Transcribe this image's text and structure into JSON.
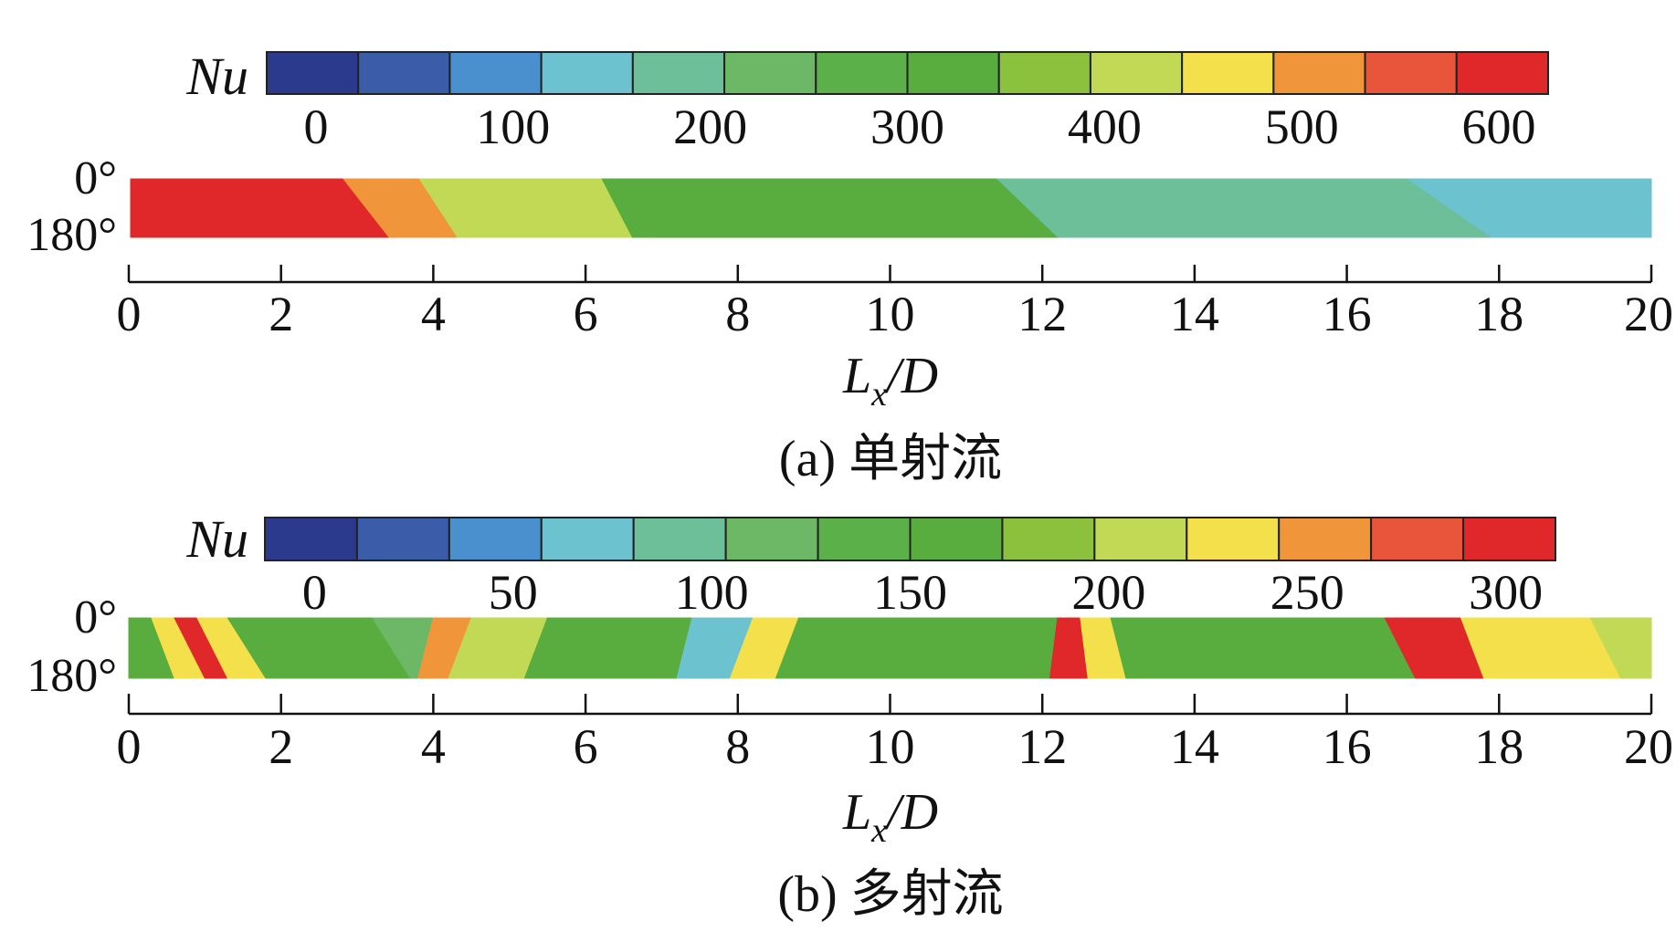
{
  "chart_data": [
    {
      "type": "heatmap",
      "panel_label": "(a) 单射流",
      "colorbar": {
        "title": "Nu",
        "tick_labels": [
          "0",
          "100",
          "200",
          "300",
          "400",
          "500",
          "600"
        ],
        "range": [
          -25,
          625
        ],
        "step": 50,
        "colors": [
          "#2b3a8c",
          "#3b5ca8",
          "#4a90cf",
          "#6cc3cf",
          "#6dbf9a",
          "#6cb866",
          "#5bb04a",
          "#59ad3e",
          "#8cc13e",
          "#c2d955",
          "#f3e04a",
          "#f0953a",
          "#e8553a",
          "#e0282a"
        ]
      },
      "y_labels": [
        "0°",
        "180°"
      ],
      "x_axis": {
        "label_main": "L",
        "label_sub": "x",
        "label_tail": "/D",
        "range": [
          0,
          20
        ],
        "ticks": [
          "0",
          "2",
          "4",
          "6",
          "8",
          "10",
          "12",
          "14",
          "16",
          "18",
          "20"
        ]
      },
      "field": {
        "description_x_unit": "Lx/D",
        "zones": [
          {
            "x_top": 0.0,
            "x_bottom": 0.0,
            "value": 600
          },
          {
            "x_top": 2.8,
            "x_bottom": 3.4,
            "value": 500
          },
          {
            "x_top": 3.8,
            "x_bottom": 4.3,
            "value": 400
          },
          {
            "x_top": 6.2,
            "x_bottom": 6.6,
            "value": 320
          },
          {
            "x_top": 11.4,
            "x_bottom": 12.2,
            "value": 200
          },
          {
            "x_top": 16.8,
            "x_bottom": 17.9,
            "value": 150
          }
        ],
        "end": 20
      }
    },
    {
      "type": "heatmap",
      "panel_label": "(b) 多射流",
      "colorbar": {
        "title": "Nu",
        "tick_labels": [
          "0",
          "50",
          "100",
          "150",
          "200",
          "250",
          "300"
        ],
        "range": [
          -12.5,
          312.5
        ],
        "step": 25,
        "colors": [
          "#2b3a8c",
          "#3b5ca8",
          "#4a90cf",
          "#6cc3cf",
          "#6dbf9a",
          "#6cb866",
          "#5bb04a",
          "#59ad3e",
          "#8cc13e",
          "#c2d955",
          "#f3e04a",
          "#f0953a",
          "#e8553a",
          "#e0282a"
        ]
      },
      "y_labels": [
        "0°",
        "180°"
      ],
      "x_axis": {
        "label_main": "L",
        "label_sub": "x",
        "label_tail": "/D",
        "range": [
          0,
          20
        ],
        "ticks": [
          "0",
          "2",
          "4",
          "6",
          "8",
          "10",
          "12",
          "14",
          "16",
          "18",
          "20"
        ]
      },
      "field": {
        "description_x_unit": "Lx/D",
        "zones": [
          {
            "x_top": 0.0,
            "x_bottom": 0.0,
            "value": 160
          },
          {
            "x_top": 0.3,
            "x_bottom": 0.6,
            "value": 240
          },
          {
            "x_top": 0.6,
            "x_bottom": 1.0,
            "value": 300
          },
          {
            "x_top": 0.9,
            "x_bottom": 1.3,
            "value": 220
          },
          {
            "x_top": 1.3,
            "x_bottom": 1.8,
            "value": 150
          },
          {
            "x_top": 3.2,
            "x_bottom": 3.7,
            "value": 110
          },
          {
            "x_top": 4.0,
            "x_bottom": 3.8,
            "value": 250
          },
          {
            "x_top": 4.5,
            "x_bottom": 4.2,
            "value": 200
          },
          {
            "x_top": 5.5,
            "x_bottom": 5.2,
            "value": 150
          },
          {
            "x_top": 7.4,
            "x_bottom": 7.2,
            "value": 80
          },
          {
            "x_top": 8.2,
            "x_bottom": 7.9,
            "value": 230
          },
          {
            "x_top": 8.8,
            "x_bottom": 8.5,
            "value": 150
          },
          {
            "x_top": 12.2,
            "x_bottom": 12.1,
            "value": 300
          },
          {
            "x_top": 12.5,
            "x_bottom": 12.6,
            "value": 230
          },
          {
            "x_top": 12.9,
            "x_bottom": 13.1,
            "value": 170
          },
          {
            "x_top": 16.5,
            "x_bottom": 16.9,
            "value": 300
          },
          {
            "x_top": 17.5,
            "x_bottom": 17.8,
            "value": 220
          },
          {
            "x_top": 19.2,
            "x_bottom": 19.6,
            "value": 200
          }
        ],
        "end": 20
      }
    }
  ]
}
